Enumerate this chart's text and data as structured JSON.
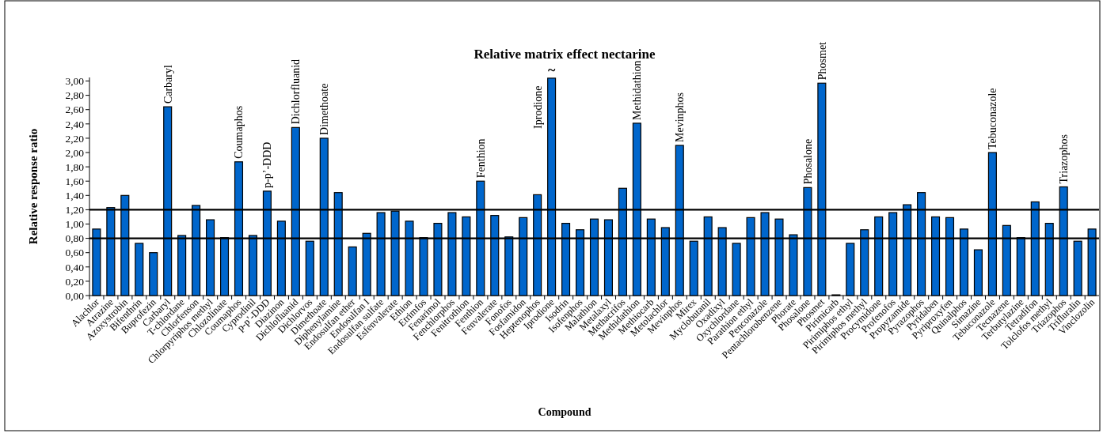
{
  "chart_data": {
    "type": "bar",
    "title": "Relative matrix effect nectarine",
    "xlabel": "Compound",
    "ylabel": "Relative response ratio",
    "categories": [
      "Alachlor",
      "Atrazine",
      "Azoxystrobin",
      "Bifenthrin",
      "Buprofezin",
      "Carbaryl",
      "T-chlordane",
      "Chlorfenson",
      "Chlorpyriphos methyl",
      "Chlozolinate",
      "Coumaphos",
      "Cyprodinil",
      "p-p’-DDD",
      "Diazinon",
      "Dichlofluanid",
      "Dichlorvos",
      "Dimethoate",
      "Diphenylamine",
      "Endosulfan ether",
      "Endosulfan I",
      "Endosulfan sulfate",
      "Esfenvalerate",
      "Ethion",
      "Etrimfos",
      "Fenarimol",
      "Fenchlorphos",
      "Fenitrothion",
      "Fenthion",
      "Fenvalerate",
      "Fonofos",
      "Fosfamidon",
      "Heptenophos",
      "Iprodione",
      "Isodrin",
      "Isofenphos",
      "Malathion",
      "Metalaxyl",
      "Methacrifos",
      "Methidathion",
      "Methiocarb",
      "Metolachlor",
      "Mevinphos",
      "Mirex",
      "Myclobutanil",
      "Oxadixyl",
      "Oxychlordane",
      "Parathion ethyl",
      "Penconazole",
      "Pentachlorobenzene",
      "Phorate",
      "Phosalone",
      "Phosmet",
      "Pirimicarb",
      "Pirimiphos ethyl",
      "Pirimiphos methyl",
      "Procymidone",
      "Profenofos",
      "Propyzamide",
      "Pyrazophos",
      "Pyridaben",
      "Pyriproxyfen",
      "Quinalphos",
      "Simazine",
      "Tebuconazole",
      "Tecnazene",
      "Terbutylazine",
      "Tetradifon",
      "Tolclofos methyl",
      "Triazophos",
      "Trifluralin",
      "Vinclozolin"
    ],
    "values": [
      0.93,
      1.23,
      1.4,
      0.73,
      0.6,
      2.64,
      0.84,
      1.26,
      1.06,
      0.81,
      1.87,
      0.84,
      1.46,
      1.04,
      2.35,
      0.76,
      2.2,
      1.44,
      0.68,
      0.87,
      1.16,
      1.18,
      1.04,
      0.81,
      1.01,
      1.16,
      1.1,
      1.6,
      1.12,
      0.82,
      1.09,
      1.41,
      3.04,
      1.01,
      0.92,
      1.07,
      1.06,
      1.5,
      2.41,
      1.07,
      0.95,
      2.1,
      0.76,
      1.1,
      0.95,
      0.73,
      1.09,
      1.16,
      1.07,
      0.85,
      1.51,
      2.97,
      0.01,
      0.73,
      0.92,
      1.1,
      1.16,
      1.27,
      1.44,
      1.1,
      1.09,
      0.93,
      0.64,
      2.0,
      0.98,
      0.81,
      1.31,
      1.01,
      1.52,
      0.76,
      0.93
    ],
    "color": "#0066cc",
    "ylim": [
      0,
      3.05
    ],
    "yticks": [
      {
        "value": 0,
        "label": "0,00"
      },
      {
        "value": 0.2,
        "label": "0,20"
      },
      {
        "value": 0.4,
        "label": "0,40"
      },
      {
        "value": 0.6,
        "label": "0,60"
      },
      {
        "value": 0.8,
        "label": "0,80"
      },
      {
        "value": 1,
        "label": "1,00"
      },
      {
        "value": 1.2,
        "label": "1,20"
      },
      {
        "value": 1.4,
        "label": "1,40"
      },
      {
        "value": 1.6,
        "label": "1,60"
      },
      {
        "value": 1.8,
        "label": "1,80"
      },
      {
        "value": 2,
        "label": "2,00"
      },
      {
        "value": 2.2,
        "label": "2,20"
      },
      {
        "value": 2.4,
        "label": "2,40"
      },
      {
        "value": 2.6,
        "label": "2,60"
      },
      {
        "value": 2.8,
        "label": "2,80"
      },
      {
        "value": 3,
        "label": "3,00"
      }
    ],
    "ref_lines": [
      {
        "axis": "y",
        "value": 1.2,
        "color": "#000000"
      },
      {
        "axis": "y",
        "value": 0.8,
        "color": "#000000"
      }
    ],
    "annotations": [
      {
        "text": "~",
        "x": "Iprodione",
        "y": 3.04
      },
      {
        "text": "Carbaryl",
        "x": "Carbaryl",
        "y": 2.64
      },
      {
        "text": "Coumaphos",
        "x": "Coumaphos",
        "y": 1.87
      },
      {
        "text": "p-p’-DDD",
        "x": "p-p’-DDD",
        "y": 1.46
      },
      {
        "text": "Dichlorfluanid",
        "x": "Dichlofluanid",
        "y": 2.35
      },
      {
        "text": "Dimethoate",
        "x": "Dimethoate",
        "y": 2.2
      },
      {
        "text": "Fenthion",
        "x": "Fenthion",
        "y": 1.6
      },
      {
        "text": "Iprodione",
        "x": "Iprodione",
        "y": 3.04
      },
      {
        "text": "Methidathion",
        "x": "Methidathion",
        "y": 2.41
      },
      {
        "text": "Mevinphos",
        "x": "Mevinphos",
        "y": 2.1
      },
      {
        "text": "Phosalone",
        "x": "Phosalone",
        "y": 1.51
      },
      {
        "text": "Phosmet",
        "x": "Phosmet",
        "y": 2.97
      },
      {
        "text": "Tebuconazole",
        "x": "Tebuconazole",
        "y": 2.0
      },
      {
        "text": "Triazophos",
        "x": "Triazophos",
        "y": 1.52
      }
    ],
    "grid": false
  }
}
